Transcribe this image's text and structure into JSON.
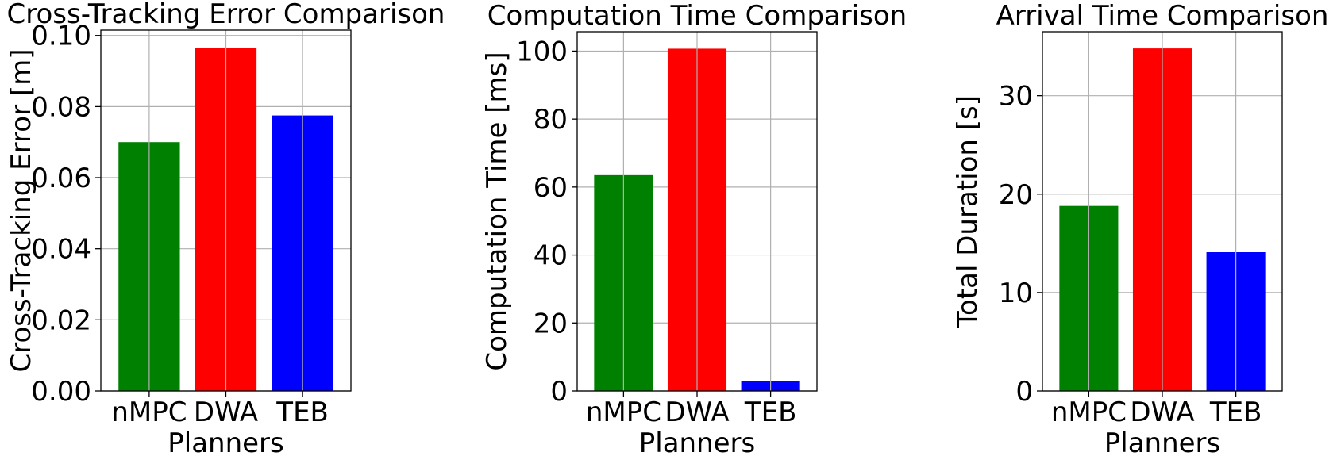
{
  "chart_data": [
    {
      "type": "bar",
      "title": "Cross-Tracking Error Comparison",
      "xlabel": "Planners",
      "ylabel": "Cross-Tracking Error [m]",
      "categories": [
        "nMPC",
        "DWA",
        "TEB"
      ],
      "values": [
        0.07,
        0.0965,
        0.0775
      ],
      "colors": [
        "#008000",
        "#ff0000",
        "#0000ff"
      ],
      "ylim": [
        0,
        0.1015
      ],
      "yticks": [
        0.0,
        0.02,
        0.04,
        0.06,
        0.08,
        0.1
      ],
      "ytick_labels": [
        "0.00",
        "0.02",
        "0.04",
        "0.06",
        "0.08",
        "0.10"
      ],
      "grid": true
    },
    {
      "type": "bar",
      "title": "Computation Time Comparison",
      "xlabel": "Planners",
      "ylabel": "Computation Time [ms]",
      "categories": [
        "nMPC",
        "DWA",
        "TEB"
      ],
      "values": [
        63.5,
        100.7,
        3.0
      ],
      "colors": [
        "#008000",
        "#ff0000",
        "#0000ff"
      ],
      "ylim": [
        0,
        105.7
      ],
      "yticks": [
        0,
        20,
        40,
        60,
        80,
        100
      ],
      "ytick_labels": [
        "0",
        "20",
        "40",
        "60",
        "80",
        "100"
      ],
      "grid": true
    },
    {
      "type": "bar",
      "title": "Arrival Time Comparison",
      "xlabel": "Planners",
      "ylabel": "Total Duration [s]",
      "categories": [
        "nMPC",
        "DWA",
        "TEB"
      ],
      "values": [
        18.8,
        34.8,
        14.1
      ],
      "colors": [
        "#008000",
        "#ff0000",
        "#0000ff"
      ],
      "ylim": [
        0,
        36.5
      ],
      "yticks": [
        0,
        10,
        20,
        30
      ],
      "ytick_labels": [
        "0",
        "10",
        "20",
        "30"
      ],
      "grid": true
    }
  ]
}
